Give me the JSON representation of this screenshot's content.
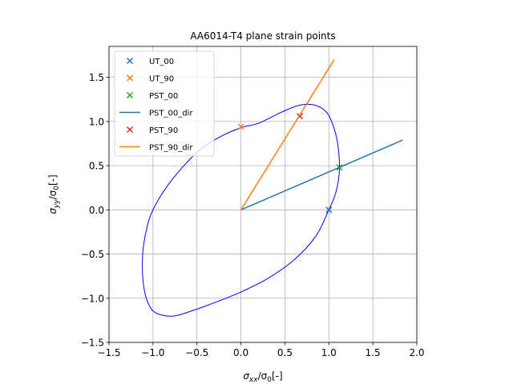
{
  "chart_data": {
    "type": "scatter",
    "title": "AA6014-T4 plane strain points",
    "xlabel": {
      "main": "σ",
      "sub": "xx",
      "mid": "/σ",
      "sub2": "0",
      "tail": "[-]"
    },
    "ylabel": {
      "main": "σ",
      "sub": "yy",
      "mid": "/σ",
      "sub2": "0",
      "tail": "[-]"
    },
    "xlim": [
      -1.5,
      2.0
    ],
    "ylim": [
      -1.5,
      1.85
    ],
    "xticks": [
      -1.5,
      -1.0,
      -0.5,
      0.0,
      0.5,
      1.0,
      1.5,
      2.0
    ],
    "xtick_labels": [
      "−1.5",
      "−1.0",
      "−0.5",
      "0.0",
      "0.5",
      "1.0",
      "1.5",
      "2.0"
    ],
    "yticks": [
      -1.5,
      -1.0,
      -0.5,
      0.0,
      0.5,
      1.0,
      1.5
    ],
    "ytick_labels": [
      "−1.5",
      "−1.0",
      "−0.5",
      "0.0",
      "0.5",
      "1.0",
      "1.5"
    ],
    "grid": true,
    "legend_position": "top-left",
    "yield_surface": {
      "color": "#0000ff",
      "points": [
        [
          1.0,
          0.0
        ],
        [
          1.08,
          0.2
        ],
        [
          1.12,
          0.45
        ],
        [
          1.1,
          0.75
        ],
        [
          1.04,
          0.98
        ],
        [
          0.96,
          1.12
        ],
        [
          0.82,
          1.19
        ],
        [
          0.65,
          1.18
        ],
        [
          0.45,
          1.1
        ],
        [
          0.2,
          0.98
        ],
        [
          0.0,
          0.93
        ],
        [
          -0.25,
          0.82
        ],
        [
          -0.5,
          0.65
        ],
        [
          -0.8,
          0.32
        ],
        [
          -1.0,
          0.0
        ],
        [
          -1.08,
          -0.25
        ],
        [
          -1.12,
          -0.55
        ],
        [
          -1.1,
          -0.9
        ],
        [
          -1.02,
          -1.12
        ],
        [
          -0.9,
          -1.19
        ],
        [
          -0.75,
          -1.2
        ],
        [
          -0.55,
          -1.14
        ],
        [
          -0.3,
          -1.05
        ],
        [
          0.0,
          -0.93
        ],
        [
          0.3,
          -0.78
        ],
        [
          0.6,
          -0.57
        ],
        [
          0.85,
          -0.3
        ],
        [
          1.0,
          0.0
        ]
      ]
    },
    "series": [
      {
        "name": "UT_00",
        "kind": "marker",
        "color": "#1f77b4",
        "points": [
          [
            1.0,
            0.0
          ]
        ]
      },
      {
        "name": "UT_90",
        "kind": "marker",
        "color": "#ff7f0e",
        "points": [
          [
            0.0,
            0.94
          ]
        ]
      },
      {
        "name": "PST_00",
        "kind": "marker",
        "color": "#2ca02c",
        "points": [
          [
            1.12,
            0.48
          ]
        ]
      },
      {
        "name": "PST_00_dir",
        "kind": "line",
        "color": "#1f77b4",
        "points": [
          [
            0.0,
            0.0
          ],
          [
            1.84,
            0.79
          ]
        ]
      },
      {
        "name": "PST_90",
        "kind": "marker",
        "color": "#d62728",
        "points": [
          [
            0.67,
            1.06
          ]
        ]
      },
      {
        "name": "PST_90_dir",
        "kind": "line",
        "color": "#ff7f0e",
        "points": [
          [
            0.0,
            0.0
          ],
          [
            1.06,
            1.7
          ]
        ]
      }
    ]
  }
}
